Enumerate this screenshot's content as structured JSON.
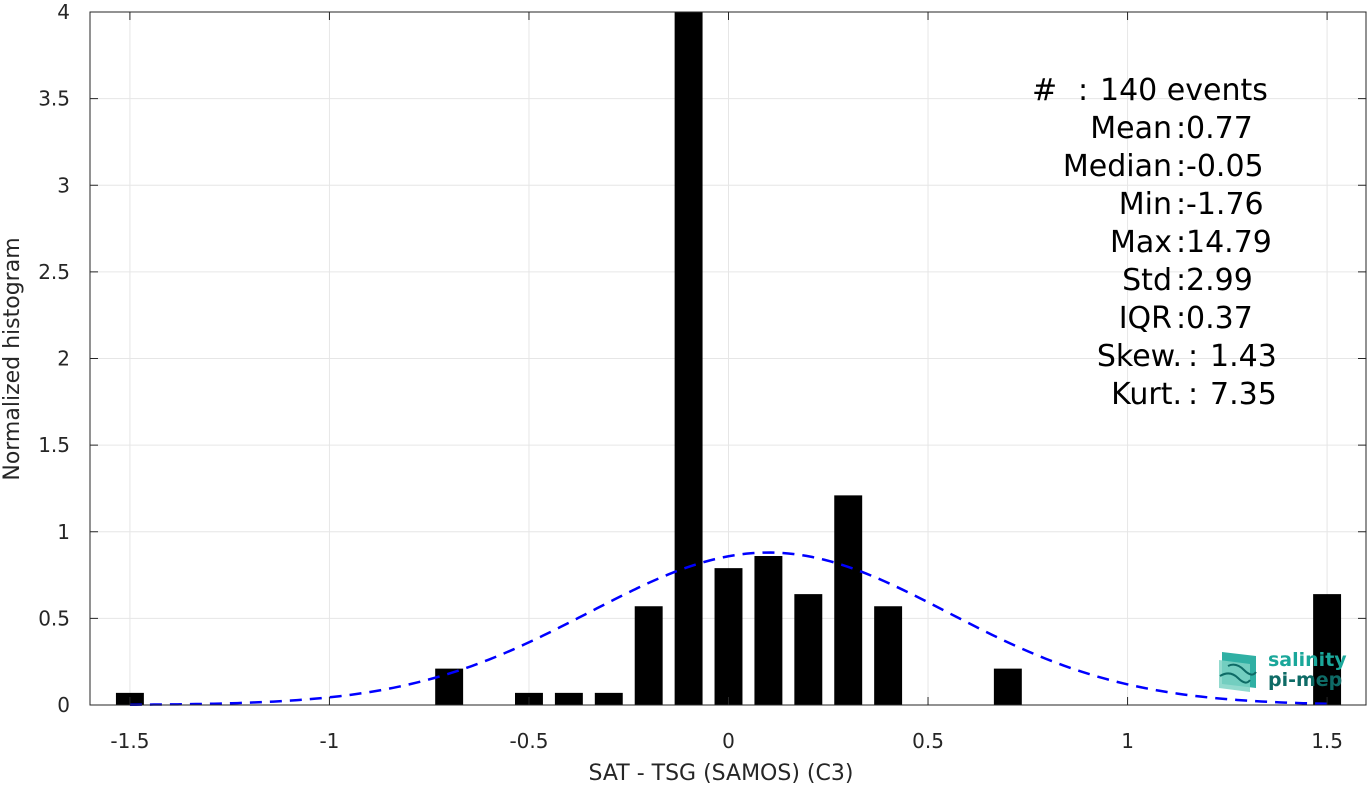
{
  "chart_data": {
    "type": "bar",
    "xlabel": "SAT - TSG (SAMOS) (C3)",
    "ylabel": "Normalized histogram",
    "xlim": [
      -1.6,
      1.6
    ],
    "ylim": [
      0,
      4
    ],
    "xticks": [
      -1.5,
      -1,
      -0.5,
      0,
      0.5,
      1,
      1.5
    ],
    "xtick_labels": [
      "-1.5",
      "-1",
      "-0.5",
      "0",
      "0.5",
      "1",
      "1.5"
    ],
    "yticks": [
      0,
      0.5,
      1,
      1.5,
      2,
      2.5,
      3,
      3.5,
      4
    ],
    "ytick_labels": [
      "0",
      "0.5",
      "1",
      "1.5",
      "2",
      "2.5",
      "3",
      "3.5",
      "4"
    ],
    "grid": true,
    "bin_width": 0.1,
    "bars": [
      {
        "x": -1.5,
        "y": 0.07
      },
      {
        "x": -0.7,
        "y": 0.21
      },
      {
        "x": -0.5,
        "y": 0.07
      },
      {
        "x": -0.4,
        "y": 0.07
      },
      {
        "x": -0.3,
        "y": 0.07
      },
      {
        "x": -0.2,
        "y": 0.57
      },
      {
        "x": -0.1,
        "y": 4.0
      },
      {
        "x": 0.0,
        "y": 0.79
      },
      {
        "x": 0.1,
        "y": 0.86
      },
      {
        "x": 0.2,
        "y": 0.64
      },
      {
        "x": 0.3,
        "y": 1.21
      },
      {
        "x": 0.4,
        "y": 0.57
      },
      {
        "x": 0.7,
        "y": 0.21
      },
      {
        "x": 1.5,
        "y": 0.64
      }
    ],
    "fit_curve": {
      "style": "dashed",
      "color": "#0000ff",
      "peak_x": 0.1,
      "peak_y": 0.88,
      "sigma": 0.45,
      "x_range": [
        -1.5,
        1.5
      ]
    }
  },
  "stats": [
    {
      "key": "#",
      "value": "140 events"
    },
    {
      "key": "Mean",
      "value": "0.77"
    },
    {
      "key": "Median",
      "value": "-0.05"
    },
    {
      "key": "Min",
      "value": "-1.76"
    },
    {
      "key": "Max",
      "value": "14.79"
    },
    {
      "key": "Std",
      "value": "2.99"
    },
    {
      "key": "IQR",
      "value": "0.37"
    },
    {
      "key": "Skew.",
      "value": "1.43"
    },
    {
      "key": "Kurt.",
      "value": "7.35"
    }
  ],
  "logo": {
    "line1": "salinity",
    "line2": "pi-mep",
    "color1": "#1aa79a",
    "color2": "#0e6b66"
  }
}
